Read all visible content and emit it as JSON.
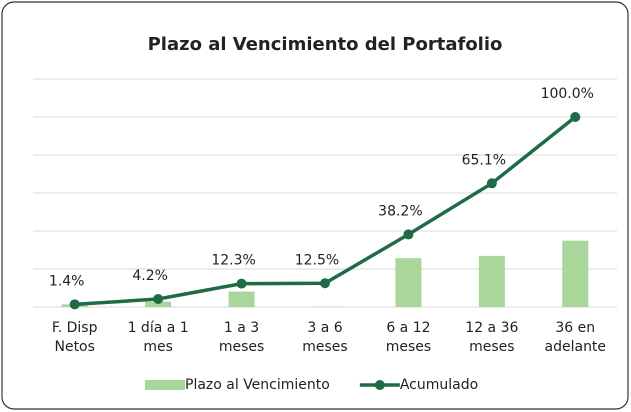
{
  "chart_data": {
    "type": "bar_line",
    "title": "Plazo al Vencimiento del Portafolio",
    "categories": [
      "F. Disp\nNetos",
      "1 día a 1\nmes",
      "1 a 3\nmeses",
      "3 a 6\nmeses",
      "6 a 12\nmeses",
      "12 a 36\nmeses",
      "36 en\nadelante"
    ],
    "series": [
      {
        "name": "Plazo al Vencimiento",
        "type": "bar",
        "color": "#a9d69a",
        "values": [
          1.4,
          2.8,
          8.1,
          0.2,
          25.7,
          26.9,
          34.9
        ]
      },
      {
        "name": "Acumulado",
        "type": "line",
        "color": "#1f6b45",
        "values": [
          1.4,
          4.2,
          12.3,
          12.5,
          38.2,
          65.1,
          100.0
        ],
        "value_labels": [
          "1.4%",
          "4.2%",
          "12.3%",
          "12.5%",
          "38.2%",
          "65.1%",
          "100.0%"
        ]
      }
    ],
    "ylim": [
      0,
      120
    ],
    "yticks": [
      0,
      20,
      40,
      60,
      80,
      100,
      120
    ],
    "grid": true,
    "legend": "bottom"
  }
}
